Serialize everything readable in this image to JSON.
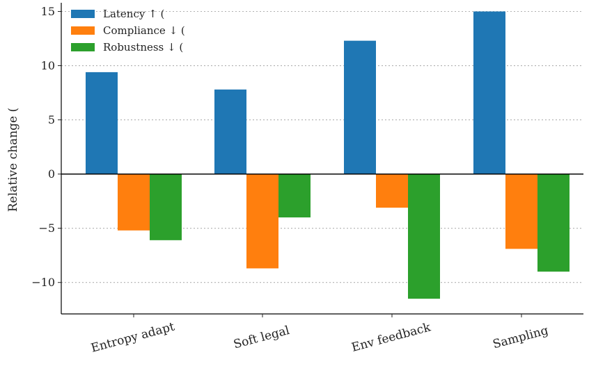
{
  "chart_data": {
    "type": "bar",
    "title": "",
    "xlabel": "",
    "ylabel": "Relative change (",
    "categories": [
      "Entropy adapt",
      "Soft legal",
      "Env feedback",
      "Sampling"
    ],
    "series": [
      {
        "name": "Latency ↑ (",
        "color": "#1f77b4",
        "values": [
          9.4,
          7.8,
          12.3,
          15.0
        ]
      },
      {
        "name": "Compliance ↓ (",
        "color": "#ff7f0e",
        "values": [
          -5.2,
          -8.7,
          -3.1,
          -6.9
        ]
      },
      {
        "name": "Robustness ↓ (",
        "color": "#2ca02c",
        "values": [
          -6.1,
          -4.0,
          -11.5,
          -9.0
        ]
      }
    ],
    "ylim": [
      -12.9,
      15.8
    ],
    "yticks": [
      -10,
      -5,
      0,
      5,
      10,
      15
    ],
    "ytick_labels": [
      "−10",
      "−5",
      "0",
      "5",
      "10",
      "15"
    ],
    "grid": {
      "axis": "y",
      "style": "dotted",
      "enabled": true
    },
    "zero_line": true,
    "legend_position": "top-left",
    "x_tick_rotation_deg": -15
  }
}
